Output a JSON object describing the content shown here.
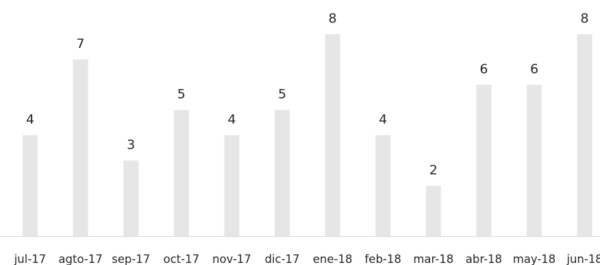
{
  "chart_data": {
    "type": "bar",
    "categories": [
      "jul-17",
      "agto-17",
      "sep-17",
      "oct-17",
      "nov-17",
      "dic-17",
      "ene-18",
      "feb-18",
      "mar-18",
      "abr-18",
      "may-18",
      "jun-18"
    ],
    "values": [
      4,
      7,
      3,
      5,
      4,
      5,
      8,
      4,
      2,
      6,
      6,
      8
    ],
    "data_labels": [
      "4",
      "7",
      "3",
      "5",
      "4",
      "5",
      "8",
      "4",
      "2",
      "6",
      "6",
      "8"
    ],
    "title": "",
    "xlabel": "",
    "ylabel": "",
    "ylim": [
      0,
      8
    ],
    "grid": false,
    "colors": {
      "bar": "#e6e6e6",
      "axis": "#d9d9d9",
      "text": "#262626"
    }
  }
}
